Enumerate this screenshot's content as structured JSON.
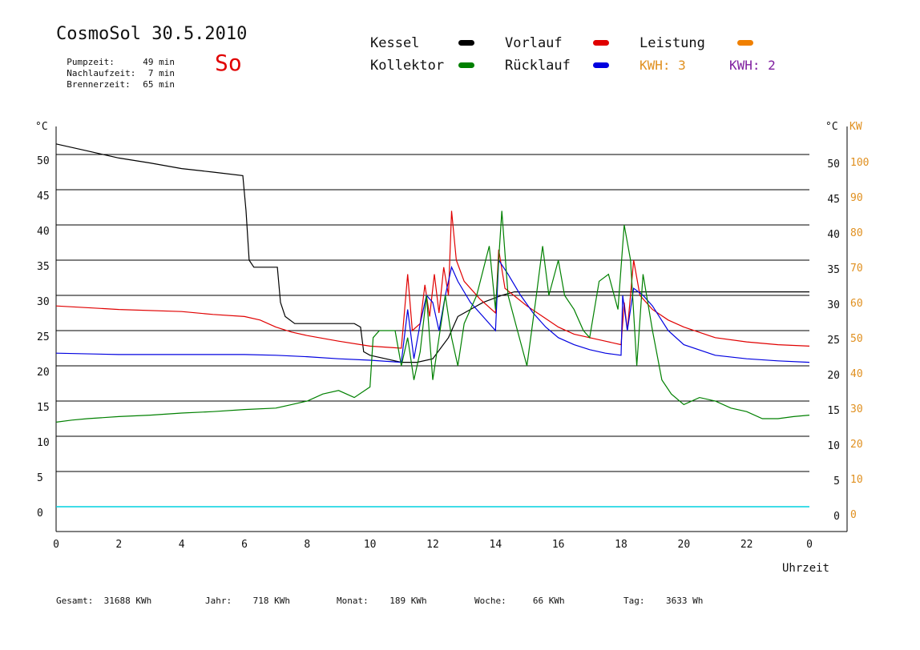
{
  "header": {
    "title": "CosmoSol 30.5.2010",
    "day": "So",
    "stats": [
      {
        "label": "Pumpzeit:",
        "value": "49 min"
      },
      {
        "label": "Nachlaufzeit:",
        "value": "7 min"
      },
      {
        "label": "Brennerzeit:",
        "value": "65 min"
      }
    ]
  },
  "legend": [
    {
      "label": "Kessel",
      "color": "#000000"
    },
    {
      "label": "Kollektor",
      "color": "#008000"
    },
    {
      "label": "Vorlauf",
      "color": "#e00000"
    },
    {
      "label": "Rücklauf",
      "color": "#0000e0"
    },
    {
      "label": "Leistung",
      "color": "#f08000"
    }
  ],
  "kwh": [
    {
      "label": "KWH: 3",
      "color": "#e09020"
    },
    {
      "label": "KWH: 2",
      "color": "#8020a0"
    }
  ],
  "footer": [
    {
      "label": "Gesamt:",
      "value": "31688 KWh"
    },
    {
      "label": "Jahr:",
      "value": "718 KWh"
    },
    {
      "label": "Monat:",
      "value": "189 KWh"
    },
    {
      "label": "Woche:",
      "value": "66 KWh"
    },
    {
      "label": "Tag:",
      "value": "3633 Wh"
    }
  ],
  "chart_data": {
    "type": "line",
    "xlabel": "Uhrzeit",
    "ylabel_left": "°C",
    "ylabel_right_1": "°C",
    "ylabel_right_2": "KW",
    "xlim": [
      0,
      24
    ],
    "ylim": [
      0,
      50
    ],
    "ylim_kw": [
      0,
      100
    ],
    "x_ticks": [
      "0",
      "2",
      "4",
      "6",
      "8",
      "10",
      "12",
      "14",
      "16",
      "18",
      "20",
      "22",
      "0"
    ],
    "x_tick_values": [
      0,
      2,
      4,
      6,
      8,
      10,
      12,
      14,
      16,
      18,
      20,
      22,
      24
    ],
    "y_ticks": [
      0,
      5,
      10,
      15,
      20,
      25,
      30,
      35,
      40,
      45,
      50
    ],
    "kw_ticks": [
      0,
      10,
      20,
      30,
      40,
      50,
      60,
      70,
      80,
      90,
      100
    ],
    "grid": true,
    "series": [
      {
        "name": "Kessel",
        "color": "#000000",
        "points": [
          [
            0,
            51.5
          ],
          [
            1,
            50.5
          ],
          [
            2,
            49.5
          ],
          [
            3,
            48.8
          ],
          [
            4,
            48.0
          ],
          [
            5,
            47.5
          ],
          [
            5.95,
            47.0
          ],
          [
            6.05,
            42.0
          ],
          [
            6.15,
            35.0
          ],
          [
            6.3,
            34.0
          ],
          [
            7.05,
            34.0
          ],
          [
            7.15,
            29.0
          ],
          [
            7.3,
            27.0
          ],
          [
            7.6,
            26.0
          ],
          [
            8,
            26.0
          ],
          [
            9.5,
            26.0
          ],
          [
            9.7,
            25.5
          ],
          [
            9.8,
            22.0
          ],
          [
            10,
            21.5
          ],
          [
            10.5,
            21.0
          ],
          [
            11,
            20.5
          ],
          [
            11.5,
            20.5
          ],
          [
            12,
            21.0
          ],
          [
            12.5,
            24.0
          ],
          [
            12.8,
            27.0
          ],
          [
            13.2,
            28.0
          ],
          [
            13.6,
            29.0
          ],
          [
            14.2,
            30.0
          ],
          [
            14.6,
            30.5
          ],
          [
            16,
            30.5
          ],
          [
            18,
            30.5
          ],
          [
            20,
            30.5
          ],
          [
            24,
            30.5
          ]
        ]
      },
      {
        "name": "Vorlauf",
        "color": "#e00000",
        "points": [
          [
            0,
            28.5
          ],
          [
            2,
            28.0
          ],
          [
            4,
            27.7
          ],
          [
            5,
            27.3
          ],
          [
            6,
            27.0
          ],
          [
            6.5,
            26.5
          ],
          [
            7,
            25.5
          ],
          [
            7.5,
            24.8
          ],
          [
            8,
            24.3
          ],
          [
            9,
            23.5
          ],
          [
            10,
            22.8
          ],
          [
            11,
            22.5
          ],
          [
            11.2,
            33.0
          ],
          [
            11.35,
            25.0
          ],
          [
            11.6,
            26.0
          ],
          [
            11.75,
            31.5
          ],
          [
            11.9,
            27.0
          ],
          [
            12.05,
            33.0
          ],
          [
            12.2,
            27.5
          ],
          [
            12.35,
            34.0
          ],
          [
            12.5,
            30.0
          ],
          [
            12.6,
            42.0
          ],
          [
            12.75,
            35.0
          ],
          [
            13,
            32.0
          ],
          [
            13.5,
            29.5
          ],
          [
            14,
            27.5
          ],
          [
            14.1,
            36.5
          ],
          [
            14.3,
            31.0
          ],
          [
            15,
            28.5
          ],
          [
            15.5,
            27.0
          ],
          [
            16,
            25.5
          ],
          [
            16.5,
            24.5
          ],
          [
            17,
            24.0
          ],
          [
            17.5,
            23.5
          ],
          [
            18,
            23.0
          ],
          [
            18.1,
            29.0
          ],
          [
            18.2,
            25.0
          ],
          [
            18.4,
            35.0
          ],
          [
            18.6,
            30.0
          ],
          [
            19,
            28.0
          ],
          [
            19.5,
            26.5
          ],
          [
            20,
            25.5
          ],
          [
            21,
            24.0
          ],
          [
            22,
            23.4
          ],
          [
            23,
            23.0
          ],
          [
            24,
            22.8
          ]
        ]
      },
      {
        "name": "Rücklauf",
        "color": "#0000e0",
        "points": [
          [
            0,
            21.8
          ],
          [
            2,
            21.6
          ],
          [
            4,
            21.6
          ],
          [
            6,
            21.6
          ],
          [
            7,
            21.5
          ],
          [
            8,
            21.3
          ],
          [
            9,
            21.0
          ],
          [
            10,
            20.8
          ],
          [
            11,
            20.5
          ],
          [
            11.2,
            28.0
          ],
          [
            11.4,
            21.0
          ],
          [
            11.6,
            26.0
          ],
          [
            11.8,
            30.0
          ],
          [
            12,
            29.0
          ],
          [
            12.2,
            25.0
          ],
          [
            12.4,
            30.0
          ],
          [
            12.6,
            34.0
          ],
          [
            12.8,
            32.0
          ],
          [
            13.2,
            29.0
          ],
          [
            13.6,
            27.0
          ],
          [
            14.0,
            25.0
          ],
          [
            14.1,
            35.0
          ],
          [
            14.4,
            33.0
          ],
          [
            14.8,
            30.0
          ],
          [
            15.2,
            27.5
          ],
          [
            15.6,
            25.5
          ],
          [
            16,
            24.0
          ],
          [
            16.5,
            23.0
          ],
          [
            17,
            22.3
          ],
          [
            17.5,
            21.8
          ],
          [
            18,
            21.5
          ],
          [
            18.05,
            30.0
          ],
          [
            18.2,
            25.0
          ],
          [
            18.4,
            31.0
          ],
          [
            18.7,
            30.0
          ],
          [
            19,
            28.5
          ],
          [
            19.5,
            25.0
          ],
          [
            20,
            23.0
          ],
          [
            21,
            21.5
          ],
          [
            22,
            21.0
          ],
          [
            23,
            20.7
          ],
          [
            24,
            20.5
          ]
        ]
      },
      {
        "name": "Kollektor",
        "color": "#008000",
        "points": [
          [
            0,
            12.0
          ],
          [
            0.5,
            12.3
          ],
          [
            1,
            12.5
          ],
          [
            2,
            12.8
          ],
          [
            3,
            13.0
          ],
          [
            4,
            13.3
          ],
          [
            5,
            13.5
          ],
          [
            6,
            13.8
          ],
          [
            7,
            14.0
          ],
          [
            7.5,
            14.5
          ],
          [
            8,
            15.0
          ],
          [
            8.5,
            16.0
          ],
          [
            9,
            16.5
          ],
          [
            9.5,
            15.5
          ],
          [
            10,
            17.0
          ],
          [
            10.1,
            24.0
          ],
          [
            10.3,
            25.0
          ],
          [
            10.8,
            25.0
          ],
          [
            11,
            20.0
          ],
          [
            11.2,
            24.0
          ],
          [
            11.4,
            18.0
          ],
          [
            11.6,
            22.0
          ],
          [
            11.8,
            30.0
          ],
          [
            12,
            18.0
          ],
          [
            12.2,
            24.0
          ],
          [
            12.4,
            30.0
          ],
          [
            12.6,
            24.0
          ],
          [
            12.8,
            20.0
          ],
          [
            13,
            26.0
          ],
          [
            13.4,
            30.0
          ],
          [
            13.8,
            37.0
          ],
          [
            14,
            28.0
          ],
          [
            14.2,
            42.0
          ],
          [
            14.4,
            30.0
          ],
          [
            14.7,
            25.0
          ],
          [
            15,
            20.0
          ],
          [
            15.3,
            30.0
          ],
          [
            15.5,
            37.0
          ],
          [
            15.7,
            30.0
          ],
          [
            16,
            35.0
          ],
          [
            16.2,
            30.0
          ],
          [
            16.5,
            28.0
          ],
          [
            16.8,
            25.0
          ],
          [
            17,
            24.0
          ],
          [
            17.3,
            32.0
          ],
          [
            17.6,
            33.0
          ],
          [
            17.9,
            28.0
          ],
          [
            18.1,
            40.0
          ],
          [
            18.3,
            35.0
          ],
          [
            18.5,
            20.0
          ],
          [
            18.7,
            33.0
          ],
          [
            19,
            25.0
          ],
          [
            19.3,
            18.0
          ],
          [
            19.6,
            16.0
          ],
          [
            20,
            14.5
          ],
          [
            20.5,
            15.5
          ],
          [
            21,
            15.0
          ],
          [
            21.5,
            14.0
          ],
          [
            22,
            13.5
          ],
          [
            22.5,
            12.5
          ],
          [
            23,
            12.5
          ],
          [
            23.5,
            12.8
          ],
          [
            24,
            13.0
          ]
        ]
      }
    ]
  }
}
